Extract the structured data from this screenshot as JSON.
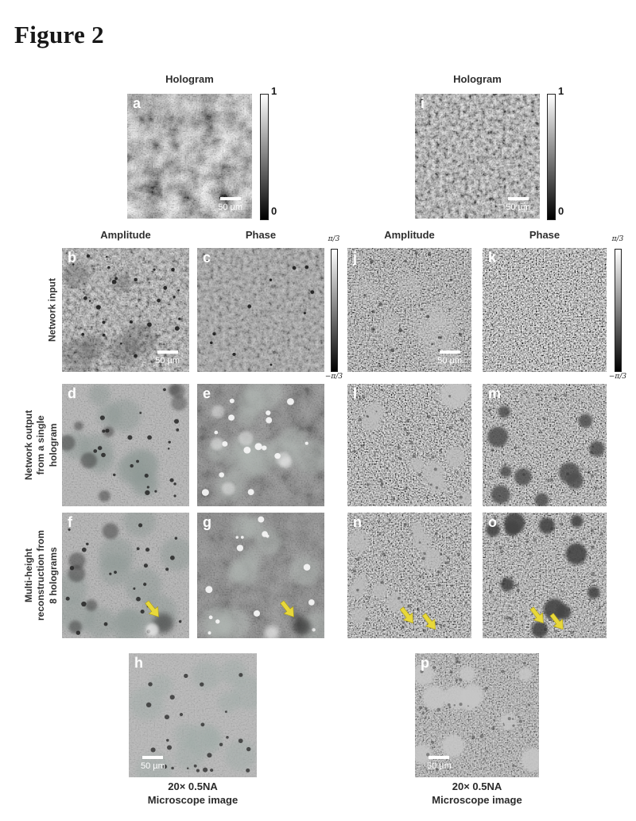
{
  "figure": {
    "title": "Figure 2"
  },
  "headers": {
    "hologram_left": "Hologram",
    "hologram_right": "Hologram",
    "amplitude_left": "Amplitude",
    "phase_left": "Phase",
    "amplitude_right": "Amplitude",
    "phase_right": "Phase"
  },
  "row_labels": {
    "network_input": "Network input",
    "network_output": "Network output from a single hologram",
    "multi_height": "Multi-height reconstruction from 8 holograms"
  },
  "colorbars": {
    "intensity": {
      "max": "1",
      "min": "0"
    },
    "phase": {
      "max": "π/3",
      "min": "−π/3"
    }
  },
  "panels": {
    "a": {
      "letter": "a",
      "scale_bar": "50 µm"
    },
    "b": {
      "letter": "b",
      "scale_bar": "50 µm"
    },
    "c": {
      "letter": "c"
    },
    "d": {
      "letter": "d"
    },
    "e": {
      "letter": "e"
    },
    "f": {
      "letter": "f"
    },
    "g": {
      "letter": "g"
    },
    "h": {
      "letter": "h",
      "scale_bar": "50 µm"
    },
    "i": {
      "letter": "i",
      "scale_bar": "50 µm"
    },
    "j": {
      "letter": "j",
      "scale_bar": "50 µm"
    },
    "k": {
      "letter": "k"
    },
    "l": {
      "letter": "l"
    },
    "m": {
      "letter": "m"
    },
    "n": {
      "letter": "n"
    },
    "o": {
      "letter": "o"
    },
    "p": {
      "letter": "p",
      "scale_bar": "50 µm"
    }
  },
  "captions": {
    "left": {
      "line1": "20× 0.5NA",
      "line2": "Microscope image"
    },
    "right": {
      "line1": "20× 0.5NA",
      "line2": "Microscope image"
    }
  },
  "annotations": {
    "arrow_color": "#e8d83a",
    "arrow_counts": {
      "f": 1,
      "g": 1,
      "n": 2,
      "o": 2
    }
  }
}
